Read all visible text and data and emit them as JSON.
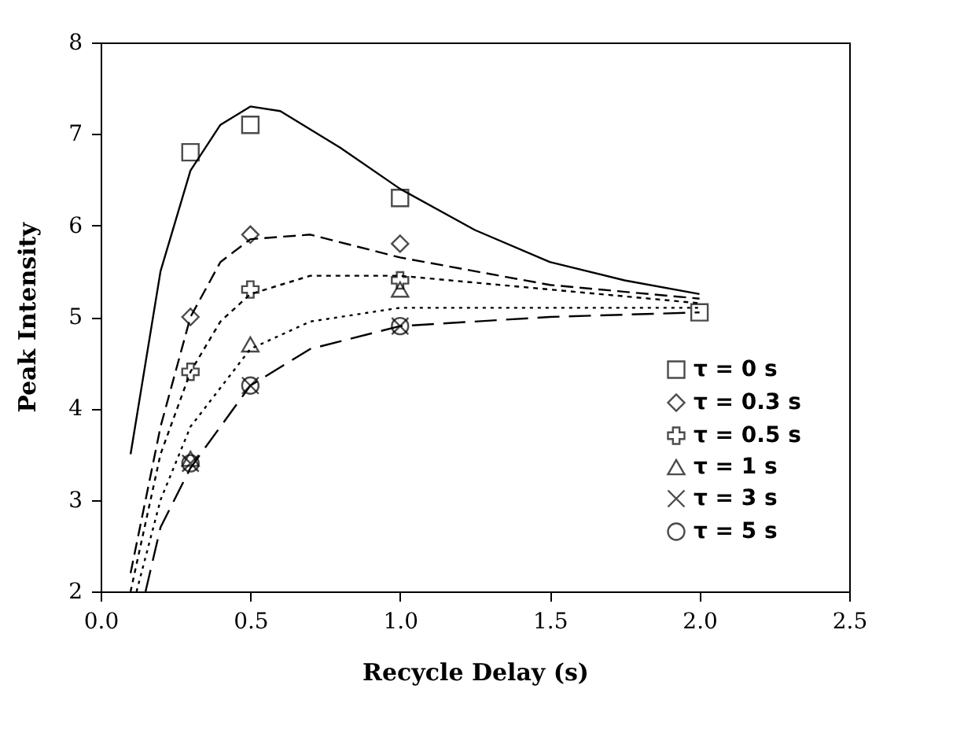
{
  "chart_data": {
    "type": "scatter",
    "xlabel": "Recycle Delay (s)",
    "ylabel": "Peak Intensity",
    "xlim": [
      0,
      2.5
    ],
    "xticks": [
      {
        "value": 0,
        "label": "0.0"
      },
      {
        "value": 0.5,
        "label": "0.5"
      },
      {
        "value": 1,
        "label": "1.0"
      },
      {
        "value": 1.5,
        "label": "1.5"
      },
      {
        "value": 2,
        "label": "2.0"
      },
      {
        "value": 2.5,
        "label": "2.5"
      }
    ],
    "ylim": [
      2,
      8
    ],
    "yticks": [
      2,
      3,
      4,
      5,
      6,
      7,
      8
    ],
    "legend": "bottom right",
    "grid": false,
    "series": [
      {
        "name": "τ = 0 s",
        "marker": "square",
        "color": "#000000",
        "x": [
          0.3,
          0.5,
          1.0,
          2.0
        ],
        "values": [
          6.8,
          7.1,
          6.3,
          5.05
        ]
      },
      {
        "name": "τ = 0.3 s",
        "marker": "diamond",
        "color": "#000000",
        "x": [
          0.3,
          0.5,
          1.0
        ],
        "values": [
          5.0,
          5.9,
          5.8
        ]
      },
      {
        "name": "τ = 0.5 s",
        "marker": "cross",
        "color": "#000000",
        "x": [
          0.3,
          0.5,
          1.0
        ],
        "values": [
          4.4,
          5.3,
          5.4
        ]
      },
      {
        "name": "τ = 1 s",
        "marker": "triangle",
        "color": "#000000",
        "x": [
          0.3,
          0.5,
          1.0
        ],
        "values": [
          3.45,
          4.7,
          5.3
        ]
      },
      {
        "name": "τ = 3 s",
        "marker": "x",
        "color": "#000000",
        "x": [
          0.3,
          0.5,
          1.0
        ],
        "values": [
          3.4,
          4.25,
          4.9
        ]
      },
      {
        "name": "τ = 5 s",
        "marker": "circle",
        "color": "#000000",
        "x": [
          0.3,
          0.5,
          1.0
        ],
        "values": [
          3.4,
          4.25,
          4.9
        ]
      },
      {
        "type": "line",
        "line_style": "solid",
        "color": "#000000",
        "x": [
          0.1,
          0.2,
          0.3,
          0.4,
          0.5,
          0.6,
          0.8,
          1.0,
          1.25,
          1.5,
          1.75,
          2.0
        ],
        "values": [
          3.5,
          5.5,
          6.6,
          7.1,
          7.3,
          7.25,
          6.85,
          6.4,
          5.95,
          5.6,
          5.4,
          5.25
        ]
      },
      {
        "type": "line",
        "line_style": "dashed",
        "color": "#000000",
        "x": [
          0.1,
          0.2,
          0.3,
          0.4,
          0.5,
          0.7,
          1.0,
          1.5,
          2.0
        ],
        "values": [
          2.2,
          3.8,
          5.0,
          5.6,
          5.85,
          5.9,
          5.65,
          5.35,
          5.2
        ]
      },
      {
        "type": "line",
        "line_style": "dashed",
        "color": "#000000",
        "x": [
          0.1,
          0.2,
          0.3,
          0.4,
          0.5,
          0.7,
          1.0,
          1.5,
          2.0
        ],
        "values": [
          2.0,
          3.5,
          4.4,
          4.95,
          5.25,
          5.45,
          5.45,
          5.3,
          5.15
        ]
      },
      {
        "type": "line",
        "line_style": "dotted",
        "color": "#000000",
        "x": [
          0.12,
          0.2,
          0.3,
          0.5,
          0.7,
          1.0,
          1.5,
          2.0
        ],
        "values": [
          2.0,
          3.0,
          3.8,
          4.65,
          4.95,
          5.1,
          5.1,
          5.1
        ]
      },
      {
        "type": "line",
        "line_style": "dashed",
        "color": "#000000",
        "x": [
          0.15,
          0.2,
          0.3,
          0.5,
          0.7,
          1.0,
          1.5,
          2.0
        ],
        "values": [
          2.0,
          2.7,
          3.35,
          4.25,
          4.65,
          4.9,
          5.0,
          5.05
        ]
      }
    ]
  }
}
